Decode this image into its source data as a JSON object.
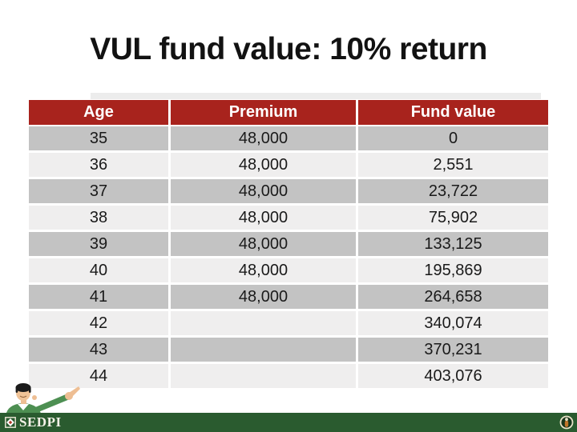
{
  "title": "VUL fund value: 10% return",
  "table": {
    "columns": [
      "Age",
      "Premium",
      "Fund value"
    ],
    "rows": [
      {
        "age": "35",
        "premium": "48,000",
        "fund_value": "0"
      },
      {
        "age": "36",
        "premium": "48,000",
        "fund_value": "2,551"
      },
      {
        "age": "37",
        "premium": "48,000",
        "fund_value": "23,722"
      },
      {
        "age": "38",
        "premium": "48,000",
        "fund_value": "75,902"
      },
      {
        "age": "39",
        "premium": "48,000",
        "fund_value": "133,125"
      },
      {
        "age": "40",
        "premium": "48,000",
        "fund_value": "195,869"
      },
      {
        "age": "41",
        "premium": "48,000",
        "fund_value": "264,658"
      },
      {
        "age": "42",
        "premium": "",
        "fund_value": "340,074"
      },
      {
        "age": "43",
        "premium": "",
        "fund_value": "370,231"
      },
      {
        "age": "44",
        "premium": "",
        "fund_value": "403,076"
      }
    ]
  },
  "footer": {
    "brand": "SEDPI"
  },
  "colors": {
    "header_red": "#a8231d",
    "row_gray": "#c3c3c3",
    "row_light": "#efeeee",
    "footer_green": "#2a5b2f",
    "title_black": "#121212"
  }
}
